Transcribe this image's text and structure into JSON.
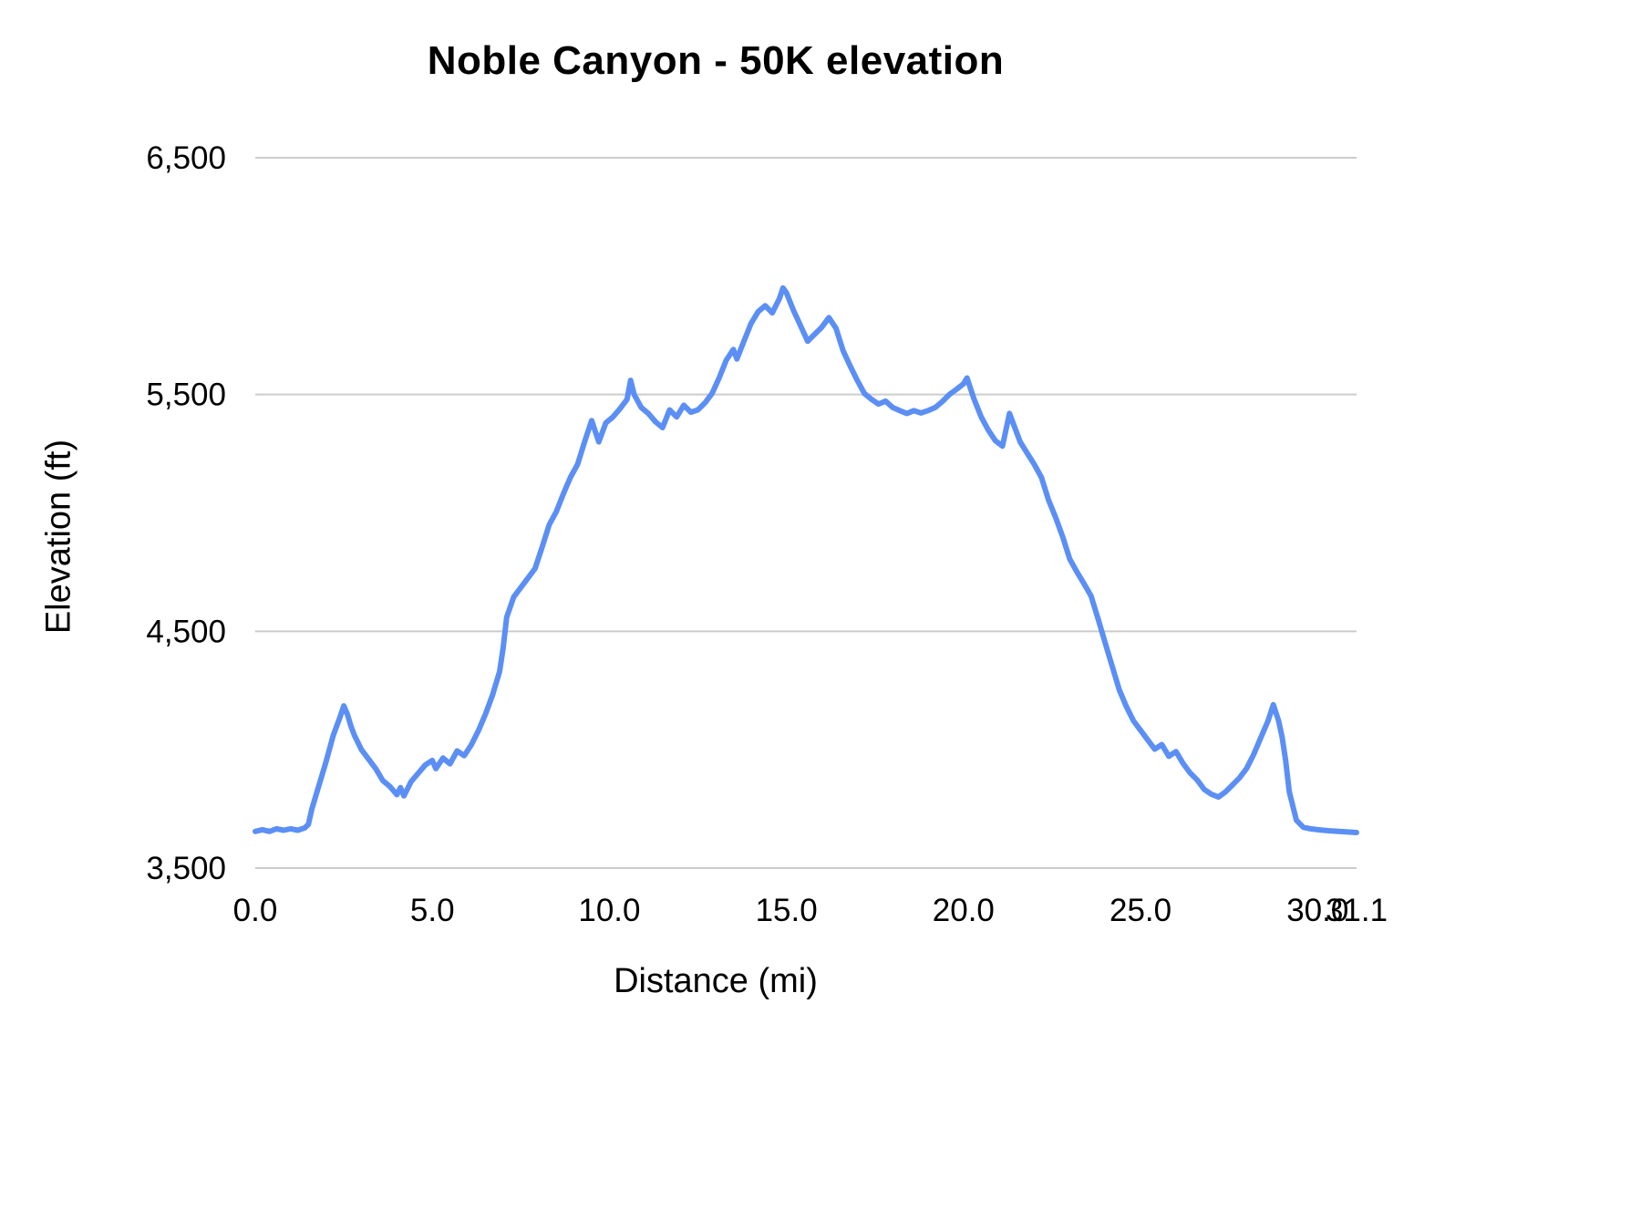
{
  "chart_data": {
    "type": "line",
    "title": "Noble Canyon - 50K elevation",
    "xlabel": "Distance (mi)",
    "ylabel": "Elevation (ft)",
    "xlim": [
      0,
      31.1
    ],
    "ylim": [
      3500,
      6500
    ],
    "grid": "horizontal-only",
    "legend": "none",
    "line_color": "#5b8ff5",
    "gridline_color": "#cccccc",
    "xticks": [
      {
        "v": 0.0,
        "label": "0.0"
      },
      {
        "v": 5.0,
        "label": "5.0"
      },
      {
        "v": 10.0,
        "label": "10.0"
      },
      {
        "v": 15.0,
        "label": "15.0"
      },
      {
        "v": 20.0,
        "label": "20.0"
      },
      {
        "v": 25.0,
        "label": "25.0"
      },
      {
        "v": 30.0,
        "label": "30.0"
      },
      {
        "v": 31.1,
        "label": "31.1"
      }
    ],
    "yticks": [
      {
        "v": 3500,
        "label": "3,500"
      },
      {
        "v": 4500,
        "label": "4,500"
      },
      {
        "v": 5500,
        "label": "5,500"
      },
      {
        "v": 6500,
        "label": "6,500"
      }
    ],
    "series": [
      {
        "name": "Elevation (ft)",
        "points": [
          [
            0.0,
            3655
          ],
          [
            0.2,
            3662
          ],
          [
            0.4,
            3655
          ],
          [
            0.6,
            3666
          ],
          [
            0.8,
            3660
          ],
          [
            1.0,
            3666
          ],
          [
            1.2,
            3660
          ],
          [
            1.4,
            3670
          ],
          [
            1.5,
            3685
          ],
          [
            1.6,
            3750
          ],
          [
            1.8,
            3850
          ],
          [
            2.0,
            3950
          ],
          [
            2.2,
            4060
          ],
          [
            2.4,
            4140
          ],
          [
            2.5,
            4185
          ],
          [
            2.6,
            4150
          ],
          [
            2.7,
            4100
          ],
          [
            2.8,
            4060
          ],
          [
            3.0,
            4000
          ],
          [
            3.2,
            3960
          ],
          [
            3.4,
            3920
          ],
          [
            3.6,
            3870
          ],
          [
            3.8,
            3845
          ],
          [
            4.0,
            3810
          ],
          [
            4.1,
            3840
          ],
          [
            4.2,
            3805
          ],
          [
            4.4,
            3865
          ],
          [
            4.6,
            3900
          ],
          [
            4.8,
            3935
          ],
          [
            5.0,
            3955
          ],
          [
            5.1,
            3920
          ],
          [
            5.3,
            3965
          ],
          [
            5.5,
            3940
          ],
          [
            5.7,
            3995
          ],
          [
            5.9,
            3975
          ],
          [
            6.1,
            4020
          ],
          [
            6.3,
            4080
          ],
          [
            6.5,
            4150
          ],
          [
            6.7,
            4230
          ],
          [
            6.9,
            4330
          ],
          [
            7.0,
            4430
          ],
          [
            7.1,
            4560
          ],
          [
            7.3,
            4645
          ],
          [
            7.5,
            4685
          ],
          [
            7.7,
            4725
          ],
          [
            7.9,
            4765
          ],
          [
            8.1,
            4855
          ],
          [
            8.3,
            4950
          ],
          [
            8.5,
            5005
          ],
          [
            8.7,
            5080
          ],
          [
            8.9,
            5150
          ],
          [
            9.1,
            5205
          ],
          [
            9.3,
            5300
          ],
          [
            9.5,
            5390
          ],
          [
            9.6,
            5345
          ],
          [
            9.7,
            5300
          ],
          [
            9.9,
            5380
          ],
          [
            10.1,
            5405
          ],
          [
            10.3,
            5440
          ],
          [
            10.5,
            5480
          ],
          [
            10.6,
            5560
          ],
          [
            10.7,
            5500
          ],
          [
            10.9,
            5445
          ],
          [
            11.1,
            5420
          ],
          [
            11.3,
            5385
          ],
          [
            11.5,
            5360
          ],
          [
            11.7,
            5435
          ],
          [
            11.9,
            5405
          ],
          [
            12.1,
            5455
          ],
          [
            12.3,
            5425
          ],
          [
            12.5,
            5435
          ],
          [
            12.7,
            5465
          ],
          [
            12.9,
            5505
          ],
          [
            13.1,
            5570
          ],
          [
            13.3,
            5645
          ],
          [
            13.5,
            5690
          ],
          [
            13.6,
            5650
          ],
          [
            13.8,
            5725
          ],
          [
            14.0,
            5800
          ],
          [
            14.2,
            5850
          ],
          [
            14.4,
            5875
          ],
          [
            14.6,
            5845
          ],
          [
            14.8,
            5905
          ],
          [
            14.9,
            5950
          ],
          [
            15.0,
            5930
          ],
          [
            15.2,
            5855
          ],
          [
            15.4,
            5790
          ],
          [
            15.6,
            5725
          ],
          [
            15.8,
            5755
          ],
          [
            16.0,
            5785
          ],
          [
            16.2,
            5825
          ],
          [
            16.4,
            5780
          ],
          [
            16.6,
            5685
          ],
          [
            16.8,
            5620
          ],
          [
            17.0,
            5560
          ],
          [
            17.2,
            5505
          ],
          [
            17.4,
            5480
          ],
          [
            17.6,
            5460
          ],
          [
            17.8,
            5472
          ],
          [
            18.0,
            5445
          ],
          [
            18.2,
            5432
          ],
          [
            18.4,
            5420
          ],
          [
            18.6,
            5432
          ],
          [
            18.8,
            5422
          ],
          [
            19.0,
            5432
          ],
          [
            19.2,
            5445
          ],
          [
            19.4,
            5470
          ],
          [
            19.6,
            5500
          ],
          [
            19.8,
            5522
          ],
          [
            20.0,
            5545
          ],
          [
            20.1,
            5570
          ],
          [
            20.3,
            5480
          ],
          [
            20.5,
            5405
          ],
          [
            20.7,
            5350
          ],
          [
            20.9,
            5305
          ],
          [
            21.1,
            5282
          ],
          [
            21.3,
            5420
          ],
          [
            21.4,
            5380
          ],
          [
            21.6,
            5300
          ],
          [
            21.8,
            5252
          ],
          [
            22.0,
            5205
          ],
          [
            22.2,
            5150
          ],
          [
            22.4,
            5055
          ],
          [
            22.6,
            4982
          ],
          [
            22.8,
            4900
          ],
          [
            23.0,
            4805
          ],
          [
            23.2,
            4752
          ],
          [
            23.4,
            4702
          ],
          [
            23.6,
            4650
          ],
          [
            23.8,
            4552
          ],
          [
            24.0,
            4452
          ],
          [
            24.2,
            4352
          ],
          [
            24.4,
            4252
          ],
          [
            24.6,
            4182
          ],
          [
            24.8,
            4122
          ],
          [
            25.0,
            4082
          ],
          [
            25.2,
            4042
          ],
          [
            25.4,
            4002
          ],
          [
            25.6,
            4022
          ],
          [
            25.8,
            3972
          ],
          [
            26.0,
            3992
          ],
          [
            26.2,
            3942
          ],
          [
            26.4,
            3902
          ],
          [
            26.6,
            3872
          ],
          [
            26.8,
            3832
          ],
          [
            27.0,
            3812
          ],
          [
            27.2,
            3800
          ],
          [
            27.4,
            3822
          ],
          [
            27.6,
            3852
          ],
          [
            27.8,
            3882
          ],
          [
            28.0,
            3922
          ],
          [
            28.2,
            3982
          ],
          [
            28.4,
            4052
          ],
          [
            28.6,
            4122
          ],
          [
            28.75,
            4190
          ],
          [
            28.9,
            4122
          ],
          [
            29.0,
            4052
          ],
          [
            29.1,
            3952
          ],
          [
            29.2,
            3822
          ],
          [
            29.4,
            3702
          ],
          [
            29.6,
            3672
          ],
          [
            29.8,
            3666
          ],
          [
            30.0,
            3662
          ],
          [
            30.3,
            3658
          ],
          [
            30.6,
            3655
          ],
          [
            30.9,
            3652
          ],
          [
            31.1,
            3650
          ]
        ]
      }
    ]
  }
}
